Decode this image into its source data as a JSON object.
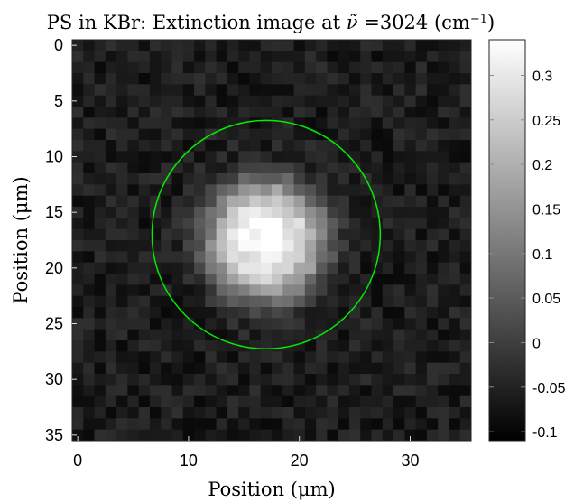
{
  "chart_data": {
    "type": "heatmap",
    "title": "PS in KBr: Extinction image at",
    "title_symbol": "ν̃",
    "title_value": " =3024 (cm",
    "title_sup": "−1",
    "title_close": ")",
    "xlabel": "Position (μm)",
    "ylabel": "Position (μm)",
    "x_ticks": [
      "0",
      "10",
      "20",
      "30"
    ],
    "y_ticks": [
      "0",
      "5",
      "10",
      "15",
      "20",
      "25",
      "30",
      "35"
    ],
    "xlim": [
      -0.5,
      35.5
    ],
    "ylim": [
      -0.5,
      35.5
    ],
    "y_reversed": true,
    "grid": false,
    "colormap": "gray",
    "colorbar": {
      "range": [
        -0.11,
        0.34
      ],
      "ticks": [
        "0.3",
        "0.25",
        "0.2",
        "0.15",
        "0.1",
        "0.05",
        "0",
        "-0.05",
        "-0.1"
      ]
    },
    "spot": {
      "center_x": 17,
      "center_y": 17.5,
      "peak_value": 0.33,
      "background_value": -0.06
    },
    "circle": {
      "center_x": 17,
      "center_y": 17,
      "radius": 10.3,
      "color": "#00ee00"
    }
  }
}
